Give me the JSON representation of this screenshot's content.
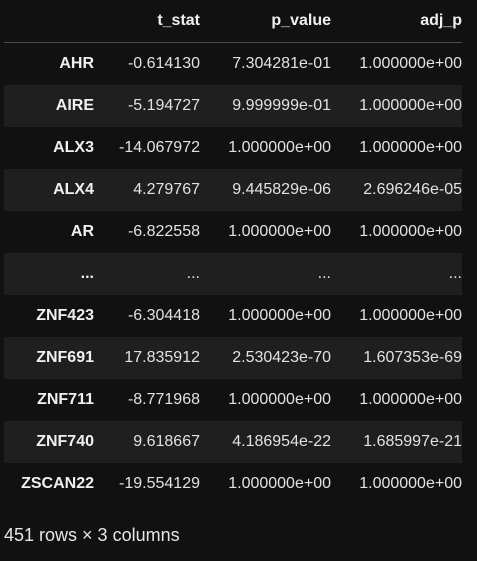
{
  "dataframe": {
    "columns": [
      "t_stat",
      "p_value",
      "adj_p"
    ],
    "rows": [
      {
        "index": "AHR",
        "t_stat": "-0.614130",
        "p_value": "7.304281e-01",
        "adj_p": "1.000000e+00"
      },
      {
        "index": "AIRE",
        "t_stat": "-5.194727",
        "p_value": "9.999999e-01",
        "adj_p": "1.000000e+00"
      },
      {
        "index": "ALX3",
        "t_stat": "-14.067972",
        "p_value": "1.000000e+00",
        "adj_p": "1.000000e+00"
      },
      {
        "index": "ALX4",
        "t_stat": "4.279767",
        "p_value": "9.445829e-06",
        "adj_p": "2.696246e-05"
      },
      {
        "index": "AR",
        "t_stat": "-6.822558",
        "p_value": "1.000000e+00",
        "adj_p": "1.000000e+00"
      },
      {
        "index": "...",
        "t_stat": "...",
        "p_value": "...",
        "adj_p": "..."
      },
      {
        "index": "ZNF423",
        "t_stat": "-6.304418",
        "p_value": "1.000000e+00",
        "adj_p": "1.000000e+00"
      },
      {
        "index": "ZNF691",
        "t_stat": "17.835912",
        "p_value": "2.530423e-70",
        "adj_p": "1.607353e-69"
      },
      {
        "index": "ZNF711",
        "t_stat": "-8.771968",
        "p_value": "1.000000e+00",
        "adj_p": "1.000000e+00"
      },
      {
        "index": "ZNF740",
        "t_stat": "9.618667",
        "p_value": "4.186954e-22",
        "adj_p": "1.685997e-21"
      },
      {
        "index": "ZSCAN22",
        "t_stat": "-19.554129",
        "p_value": "1.000000e+00",
        "adj_p": "1.000000e+00"
      }
    ],
    "shape_text": "451 rows × 3 columns"
  }
}
